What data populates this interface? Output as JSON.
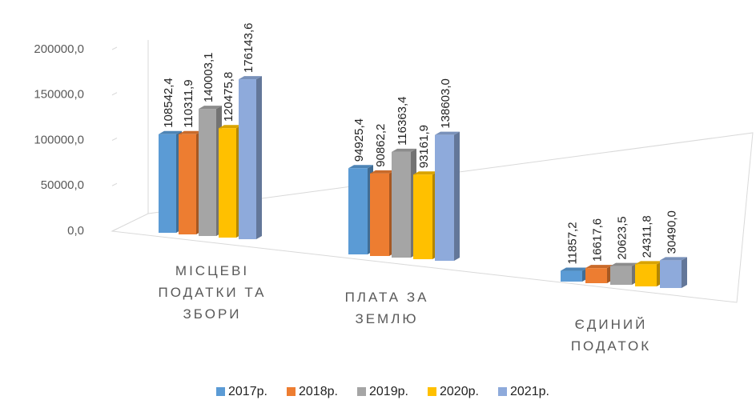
{
  "chart_data": {
    "type": "bar3d",
    "categories": [
      "МІСЦЕВІ ПОДАТКИ ТА ЗБОРИ",
      "ПЛАТА ЗА ЗЕМЛЮ",
      "ЄДИНИЙ ПОДАТОК"
    ],
    "series": [
      {
        "name": "2017р.",
        "color": "#5b9bd5",
        "values": [
          108542.4,
          94925.4,
          11857.2
        ],
        "value_labels": [
          "108542,4",
          "94925,4",
          "11857,2"
        ]
      },
      {
        "name": "2018р.",
        "color": "#ed7d31",
        "values": [
          110311.9,
          90862.2,
          16617.6
        ],
        "value_labels": [
          "110311,9",
          "90862,2",
          "16617,6"
        ]
      },
      {
        "name": "2019р.",
        "color": "#a5a5a5",
        "values": [
          140003.1,
          116363.4,
          20623.5
        ],
        "value_labels": [
          "140003,1",
          "116363,4",
          "20623,5"
        ]
      },
      {
        "name": "2020р.",
        "color": "#ffc000",
        "values": [
          120475.8,
          93161.9,
          24311.8
        ],
        "value_labels": [
          "120475,8",
          "93161,9",
          "24311,8"
        ]
      },
      {
        "name": "2021р.",
        "color": "#8eaadb",
        "values": [
          176143.6,
          138603.0,
          30490.0
        ],
        "value_labels": [
          "176143,6",
          "138603,0",
          "30490,0"
        ]
      }
    ],
    "ylim": [
      0,
      200000
    ],
    "yticks": [
      {
        "value": 0,
        "label": "0,0"
      },
      {
        "value": 50000,
        "label": "50000,0"
      },
      {
        "value": 100000,
        "label": "100000,0"
      },
      {
        "value": 150000,
        "label": "150000,0"
      },
      {
        "value": 200000,
        "label": "200000,0"
      }
    ],
    "legend": "bottom"
  }
}
